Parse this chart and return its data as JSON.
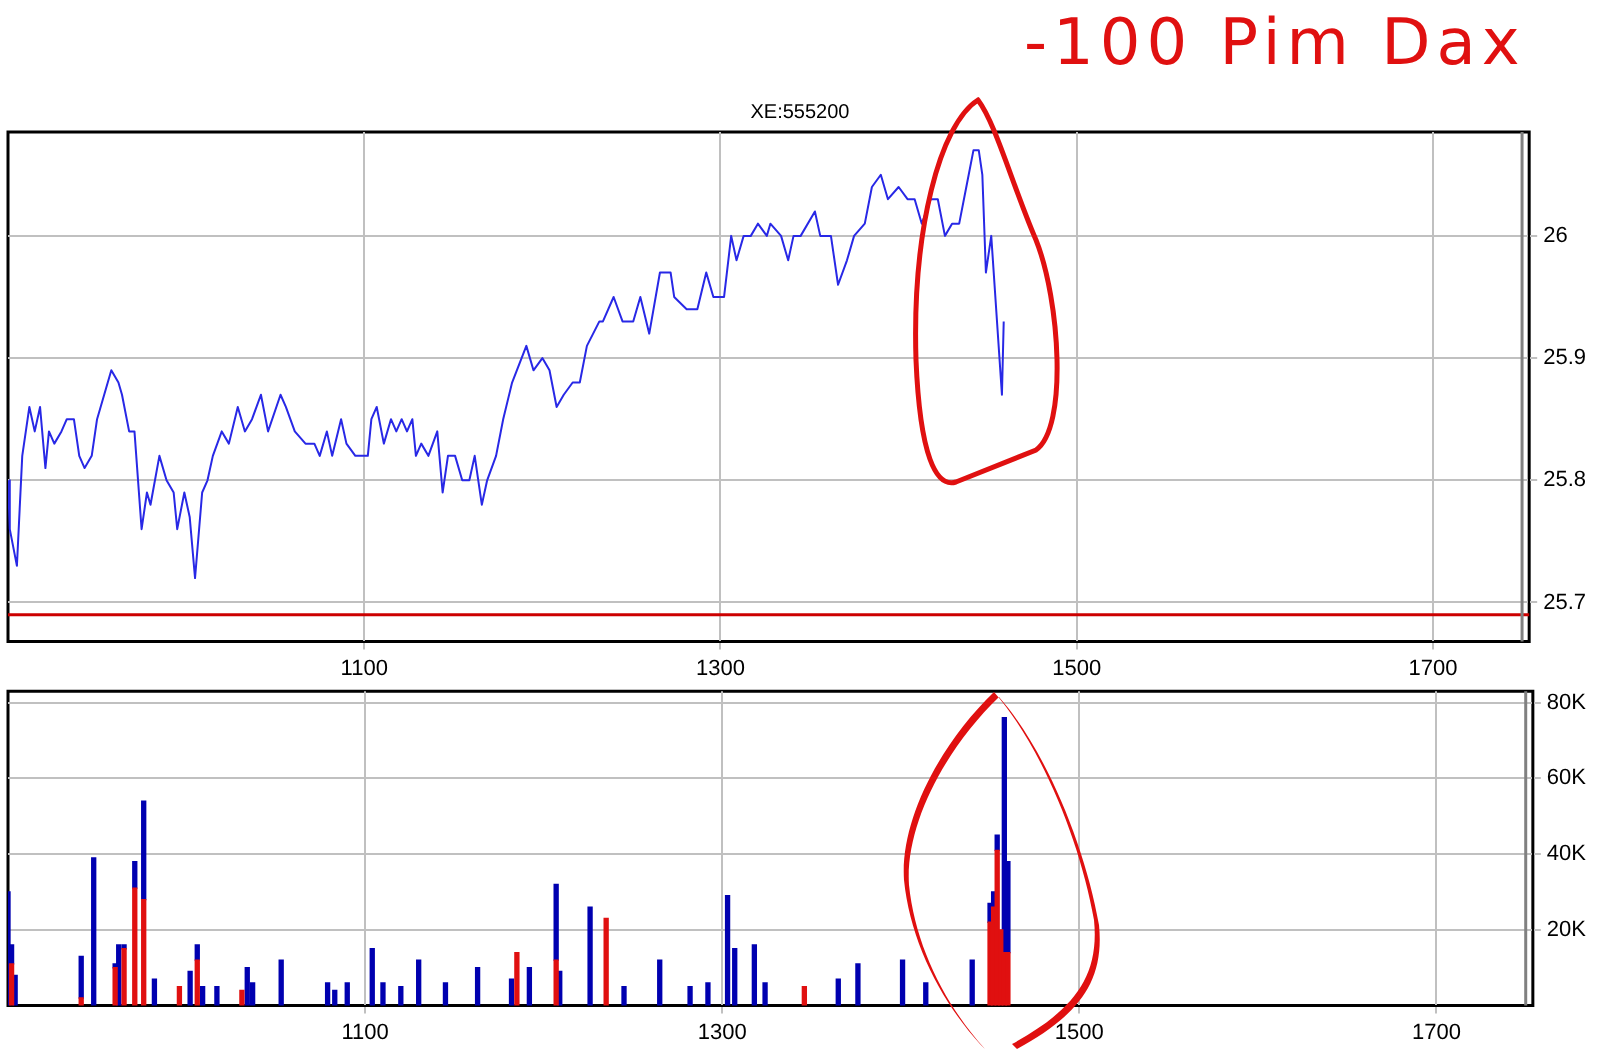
{
  "chart_data": [
    {
      "type": "line",
      "title": "XE:555200",
      "color": "#2828e6",
      "grid": true,
      "annotations": [
        "-100 Pim Dax"
      ],
      "xlim": [
        900,
        1754
      ],
      "xticks": [
        1100,
        1300,
        1500,
        1700
      ],
      "ylim": [
        25.668,
        26.085
      ],
      "yticks": [
        25.7,
        25.8,
        25.9,
        26
      ],
      "ref_lines": [
        {
          "axis": "y",
          "value": 25.69,
          "color": "#cc0000"
        },
        {
          "axis": "x",
          "value": 1750,
          "color": "#808080"
        }
      ],
      "x": [
        900,
        901,
        905,
        908,
        912,
        915,
        918,
        921,
        923,
        926,
        930,
        933,
        937,
        940,
        943,
        947,
        950,
        954,
        958,
        962,
        964,
        968,
        971,
        975,
        978,
        980,
        985,
        989,
        993,
        995,
        999,
        1002,
        1005,
        1009,
        1012,
        1015,
        1020,
        1024,
        1029,
        1033,
        1037,
        1042,
        1046,
        1053,
        1056,
        1061,
        1067,
        1072,
        1075,
        1079,
        1082,
        1087,
        1090,
        1095,
        1102,
        1104,
        1107,
        1111,
        1115,
        1118,
        1121,
        1124,
        1127,
        1129,
        1132,
        1136,
        1141,
        1144,
        1147,
        1151,
        1155,
        1159,
        1162,
        1166,
        1169,
        1174,
        1178,
        1183,
        1191,
        1195,
        1200,
        1204,
        1208,
        1212,
        1217,
        1221,
        1225,
        1232,
        1234,
        1240,
        1245,
        1251,
        1255,
        1260,
        1266,
        1272,
        1274,
        1281,
        1287,
        1292,
        1296,
        1302,
        1306,
        1309,
        1313,
        1317,
        1321,
        1326,
        1328,
        1334,
        1338,
        1341,
        1345,
        1353,
        1356,
        1362,
        1366,
        1371,
        1375,
        1381,
        1385,
        1390,
        1394,
        1400,
        1405,
        1409,
        1413,
        1418,
        1422,
        1426,
        1430,
        1434,
        1438,
        1442,
        1445,
        1447,
        1449,
        1452,
        1458,
        1459
      ],
      "values": [
        25.8,
        25.76,
        25.73,
        25.82,
        25.86,
        25.84,
        25.86,
        25.81,
        25.84,
        25.83,
        25.84,
        25.85,
        25.85,
        25.82,
        25.81,
        25.82,
        25.85,
        25.87,
        25.89,
        25.88,
        25.87,
        25.84,
        25.84,
        25.76,
        25.79,
        25.78,
        25.82,
        25.8,
        25.79,
        25.76,
        25.79,
        25.77,
        25.72,
        25.79,
        25.8,
        25.82,
        25.84,
        25.83,
        25.86,
        25.84,
        25.85,
        25.87,
        25.84,
        25.87,
        25.86,
        25.84,
        25.83,
        25.83,
        25.82,
        25.84,
        25.82,
        25.85,
        25.83,
        25.82,
        25.82,
        25.85,
        25.86,
        25.83,
        25.85,
        25.84,
        25.85,
        25.84,
        25.85,
        25.82,
        25.83,
        25.82,
        25.84,
        25.79,
        25.82,
        25.82,
        25.8,
        25.8,
        25.82,
        25.78,
        25.8,
        25.82,
        25.85,
        25.88,
        25.91,
        25.89,
        25.9,
        25.89,
        25.86,
        25.87,
        25.88,
        25.88,
        25.91,
        25.93,
        25.93,
        25.95,
        25.93,
        25.93,
        25.95,
        25.92,
        25.97,
        25.97,
        25.95,
        25.94,
        25.94,
        25.97,
        25.95,
        25.95,
        26.0,
        25.98,
        26.0,
        26.0,
        26.01,
        26.0,
        26.01,
        26.0,
        25.98,
        26.0,
        26.0,
        26.02,
        26.0,
        26.0,
        25.96,
        25.98,
        26.0,
        26.01,
        26.04,
        26.05,
        26.03,
        26.04,
        26.03,
        26.03,
        26.01,
        26.03,
        26.03,
        26.0,
        26.01,
        26.01,
        26.04,
        26.07,
        26.07,
        26.05,
        25.97,
        26.0,
        25.87,
        25.93
      ]
    },
    {
      "type": "bar",
      "stacked": true,
      "grid": true,
      "xlim": [
        900,
        1754
      ],
      "xticks": [
        1100,
        1300,
        1500,
        1700
      ],
      "ylim": [
        0,
        83000
      ],
      "yticks": [
        {
          "value": 20000,
          "label": "20K"
        },
        {
          "value": 40000,
          "label": "40K"
        },
        {
          "value": 60000,
          "label": "60K"
        },
        {
          "value": 80000,
          "label": "80K"
        }
      ],
      "ref_lines": [
        {
          "axis": "x",
          "value": 1750,
          "color": "#808080"
        }
      ],
      "x": [
        900,
        902,
        904,
        941,
        948,
        960,
        962,
        965,
        971,
        976,
        982,
        996,
        1002,
        1006,
        1009,
        1017,
        1031,
        1034,
        1037,
        1053,
        1079,
        1083,
        1090,
        1104,
        1110,
        1120,
        1130,
        1145,
        1163,
        1182,
        1185,
        1192,
        1207,
        1209,
        1226,
        1235,
        1245,
        1265,
        1282,
        1292,
        1303,
        1307,
        1318,
        1324,
        1346,
        1365,
        1376,
        1401,
        1414,
        1440,
        1450,
        1452,
        1454,
        1456,
        1458,
        1460
      ],
      "series": [
        {
          "color": "#e01010",
          "values": [
            null,
            11000,
            null,
            2000,
            null,
            10000,
            null,
            15000,
            31000,
            28000,
            null,
            5000,
            null,
            12000,
            null,
            null,
            4000,
            null,
            null,
            null,
            null,
            null,
            null,
            null,
            null,
            null,
            null,
            null,
            null,
            null,
            14000,
            null,
            12000,
            null,
            null,
            23000,
            null,
            null,
            null,
            null,
            null,
            null,
            null,
            null,
            5000,
            null,
            null,
            null,
            null,
            null,
            22000,
            26000,
            41000,
            20000,
            14000,
            14000
          ]
        },
        {
          "color": "#0000b0",
          "values": [
            30000,
            5000,
            8000,
            11000,
            39000,
            1000,
            16000,
            1000,
            7000,
            26000,
            7000,
            null,
            9000,
            4000,
            5000,
            5000,
            null,
            10000,
            6000,
            12000,
            6000,
            4000,
            6000,
            15000,
            6000,
            5000,
            12000,
            6000,
            10000,
            7000,
            null,
            10000,
            20000,
            9000,
            26000,
            null,
            5000,
            12000,
            5000,
            6000,
            29000,
            15000,
            16000,
            6000,
            null,
            7000,
            11000,
            12000,
            6000,
            12000,
            5000,
            4000,
            4000,
            null,
            62000,
            24000
          ]
        }
      ]
    }
  ]
}
